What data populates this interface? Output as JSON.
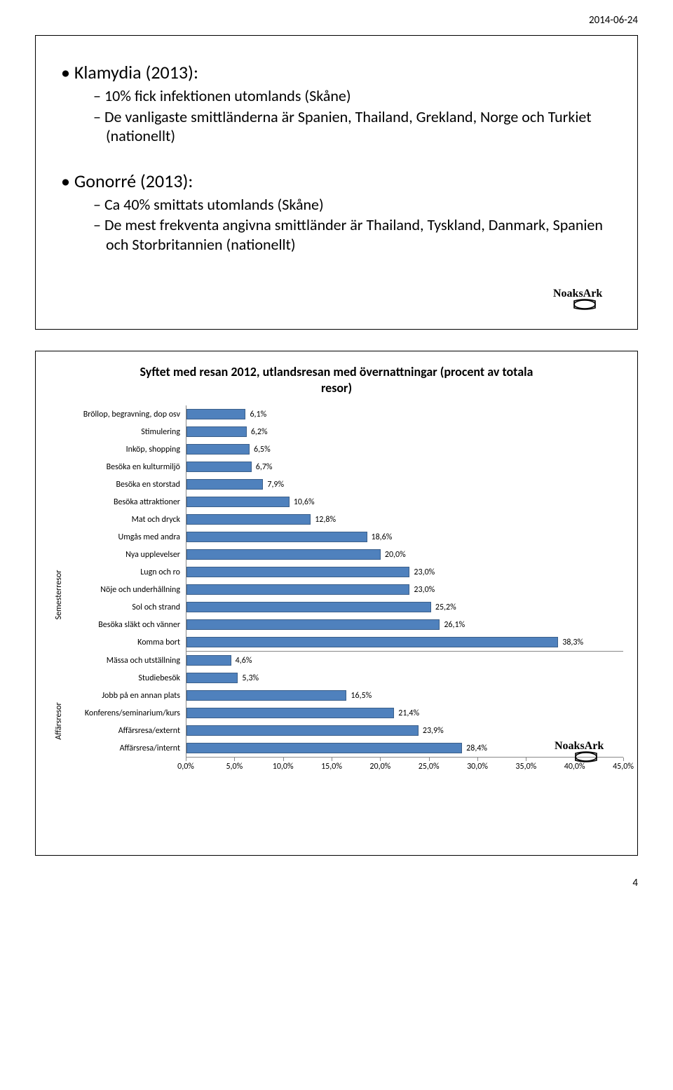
{
  "header_date": "2014-06-24",
  "page_number": "4",
  "slide1": {
    "sections": [
      {
        "title": "Klamydia (2013):",
        "subs": [
          "10% fick infektionen utomlands (Skåne)",
          "De vanligaste smittländerna är Spanien, Thailand, Grekland, Norge och Turkiet (nationellt)"
        ]
      },
      {
        "title": "Gonorré (2013):",
        "subs": [
          "Ca 40% smittats utomlands (Skåne)",
          "De mest frekventa angivna smittländer är Thailand, Tyskland, Danmark, Spanien och Storbritannien (nationellt)"
        ]
      }
    ],
    "logo_text": "NoaksArk"
  },
  "chart": {
    "title_line1": "Syftet med resan 2012, utlandsresan med övernattningar (procent av totala",
    "title_line2": "resor)",
    "type": "bar",
    "bar_color": "#4f81bd",
    "bar_border": "#3b5f8a",
    "grid_color": "#cccccc",
    "background_color": "#ffffff",
    "label_fontsize": 12,
    "title_fontsize": 18,
    "xlim_max": 45.0,
    "xtick_step": 5.0,
    "xticks": [
      "0,0%",
      "5,0%",
      "10,0%",
      "15,0%",
      "20,0%",
      "25,0%",
      "30,0%",
      "35,0%",
      "40,0%",
      "45,0%"
    ],
    "groups": [
      {
        "label": "Semesterresor",
        "rows": [
          {
            "label": "Bröllop, begravning, dop osv",
            "value": 6.1,
            "text": "6,1%"
          },
          {
            "label": "Stimulering",
            "value": 6.2,
            "text": "6,2%"
          },
          {
            "label": "Inköp, shopping",
            "value": 6.5,
            "text": "6,5%"
          },
          {
            "label": "Besöka en kulturmiljö",
            "value": 6.7,
            "text": "6,7%"
          },
          {
            "label": "Besöka en storstad",
            "value": 7.9,
            "text": "7,9%"
          },
          {
            "label": "Besöka attraktioner",
            "value": 10.6,
            "text": "10,6%"
          },
          {
            "label": "Mat och dryck",
            "value": 12.8,
            "text": "12,8%"
          },
          {
            "label": "Umgås med andra",
            "value": 18.6,
            "text": "18,6%"
          },
          {
            "label": "Nya upplevelser",
            "value": 20.0,
            "text": "20,0%"
          },
          {
            "label": "Lugn och ro",
            "value": 23.0,
            "text": "23,0%"
          },
          {
            "label": "Nöje och underhållning",
            "value": 23.0,
            "text": "23,0%"
          },
          {
            "label": "Sol och strand",
            "value": 25.2,
            "text": "25,2%"
          },
          {
            "label": "Besöka släkt och vänner",
            "value": 26.1,
            "text": "26,1%"
          },
          {
            "label": "Komma bort",
            "value": 38.3,
            "text": "38,3%"
          }
        ]
      },
      {
        "label": "Affärsresor",
        "rows": [
          {
            "label": "Mässa och utställning",
            "value": 4.6,
            "text": "4,6%"
          },
          {
            "label": "Studiebesök",
            "value": 5.3,
            "text": "5,3%"
          },
          {
            "label": "Jobb på en annan plats",
            "value": 16.5,
            "text": "16,5%"
          },
          {
            "label": "Konferens/seminarium/kurs",
            "value": 21.4,
            "text": "21,4%"
          },
          {
            "label": "Affärsresa/externt",
            "value": 23.9,
            "text": "23,9%"
          },
          {
            "label": "Affärsresa/internt",
            "value": 28.4,
            "text": "28,4%"
          }
        ]
      }
    ],
    "logo_text": "NoaksArk"
  }
}
